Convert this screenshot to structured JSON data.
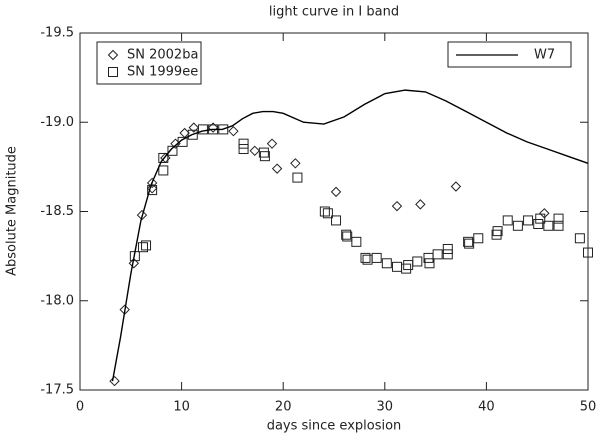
{
  "chart_data": {
    "type": "scatter",
    "title": "light curve in I band",
    "xlabel": "days since explosion",
    "ylabel": "Absolute Magnitude",
    "xlim": [
      0,
      50
    ],
    "xticks": [
      0,
      10,
      20,
      30,
      40,
      50
    ],
    "ylim": [
      -17.5,
      -19.5
    ],
    "yticks": [
      -19.5,
      {
        "value": -19,
        "label": "-19.0"
      },
      -18.5,
      {
        "value": -18,
        "label": "-18.0"
      },
      -17.5
    ],
    "series": [
      {
        "name": "SN 2002ba",
        "type": "scatter",
        "marker": "diamond",
        "color": "#222",
        "legend": "upper left",
        "x": [
          3.4,
          4.4,
          5.3,
          6.1,
          7.1,
          7.1,
          8.4,
          9.4,
          10.3,
          11.2,
          13.1,
          15.1,
          17.2,
          18.9,
          19.4,
          21.2,
          25.2,
          31.2,
          33.5,
          37.0,
          45.7
        ],
        "values": [
          -17.55,
          -17.95,
          -18.21,
          -18.48,
          -18.66,
          -18.63,
          -18.8,
          -18.88,
          -18.94,
          -18.97,
          -18.97,
          -18.95,
          -18.84,
          -18.88,
          -18.74,
          -18.77,
          -18.61,
          -18.53,
          -18.54,
          -18.64,
          -18.49
        ]
      },
      {
        "name": "SN 1999ee",
        "type": "scatter",
        "marker": "square",
        "color": "#222",
        "legend": "upper left",
        "x": [
          5.4,
          6.2,
          6.5,
          7.1,
          8.2,
          8.2,
          9.1,
          10.1,
          11.1,
          12.1,
          13.1,
          14.1,
          16.1,
          16.1,
          18.1,
          18.2,
          21.4,
          24.1,
          24.4,
          25.2,
          26.2,
          26.3,
          27.2,
          28.1,
          28.3,
          29.2,
          30.2,
          31.2,
          32.1,
          32.3,
          33.2,
          34.3,
          34.4,
          35.2,
          36.2,
          36.2,
          38.2,
          38.3,
          39.2,
          41.0,
          41.1,
          42.1,
          43.1,
          44.1,
          45.1,
          45.3,
          46.1,
          47.1,
          47.1,
          49.2,
          50.0
        ],
        "values": [
          -18.25,
          -18.3,
          -18.31,
          -18.62,
          -18.73,
          -18.8,
          -18.84,
          -18.89,
          -18.93,
          -18.96,
          -18.96,
          -18.96,
          -18.88,
          -18.85,
          -18.83,
          -18.81,
          -18.69,
          -18.5,
          -18.49,
          -18.45,
          -18.37,
          -18.36,
          -18.33,
          -18.24,
          -18.23,
          -18.24,
          -18.21,
          -18.19,
          -18.18,
          -18.2,
          -18.22,
          -18.24,
          -18.21,
          -18.26,
          -18.29,
          -18.26,
          -18.33,
          -18.32,
          -18.35,
          -18.37,
          -18.39,
          -18.45,
          -18.42,
          -18.45,
          -18.43,
          -18.46,
          -18.42,
          -18.46,
          -18.42,
          -18.35,
          -18.27
        ]
      },
      {
        "name": "W7",
        "type": "line",
        "color": "#000",
        "legend": "upper right",
        "x": [
          3.2,
          4,
          5,
          6,
          7,
          8,
          9,
          10,
          11,
          12,
          13,
          14,
          15,
          16,
          17,
          18,
          19,
          20,
          22,
          24,
          26,
          28,
          30,
          32,
          34,
          36,
          38,
          40,
          42,
          44,
          46,
          48,
          50
        ],
        "values": [
          -17.55,
          -17.8,
          -18.15,
          -18.45,
          -18.65,
          -18.78,
          -18.85,
          -18.9,
          -18.93,
          -18.95,
          -18.96,
          -18.96,
          -18.98,
          -19.02,
          -19.05,
          -19.06,
          -19.06,
          -19.05,
          -19.0,
          -18.99,
          -19.03,
          -19.1,
          -19.16,
          -19.18,
          -19.17,
          -19.12,
          -19.06,
          -19.0,
          -18.94,
          -18.89,
          -18.85,
          -18.81,
          -18.77
        ]
      }
    ]
  }
}
